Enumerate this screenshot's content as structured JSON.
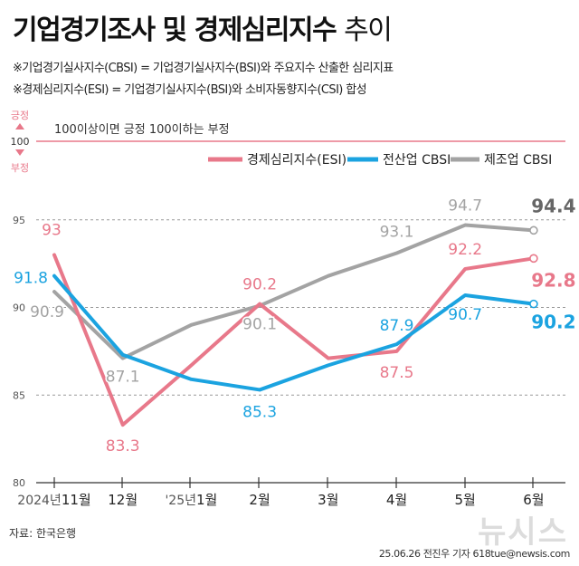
{
  "title": {
    "bold": "기업경기조사 및 경제심리지수",
    "light": "추이"
  },
  "notes": [
    "※기업경기실사지수(CBSI) = 기업경기실사지수(BSI)와 주요지수 산출한 심리지표",
    "※경제심리지수(ESI) = 기업경기실사지수(BSI)와 소비자동향지수(CSI) 합성"
  ],
  "reference": {
    "positive": "긍정",
    "negative": "부정",
    "level_label": "100",
    "description": "100이상이면 긍정 100이하는 부정"
  },
  "source": "자료: 한국은행",
  "credit": "25.06.26 전진우 기자 618tue@newsis.com",
  "watermark": "뉴시스",
  "colors": {
    "esi": "#e8788a",
    "cbsi_all": "#1ba3e0",
    "cbsi_mfg": "#a3a3a3",
    "reference": "#e8788a"
  },
  "chart_data": {
    "type": "line",
    "categories": [
      "2024년11월",
      "12월",
      "'25년1월",
      "2월",
      "3월",
      "4월",
      "5월",
      "6월"
    ],
    "category_display": [
      {
        "prefix": "2024년",
        "month": "11월"
      },
      {
        "prefix": "",
        "month": "12월"
      },
      {
        "prefix": "'25년",
        "month": "1월"
      },
      {
        "prefix": "",
        "month": "2월"
      },
      {
        "prefix": "",
        "month": "3월"
      },
      {
        "prefix": "",
        "month": "4월"
      },
      {
        "prefix": "",
        "month": "5월"
      },
      {
        "prefix": "",
        "month": "6월"
      }
    ],
    "ylim": [
      80,
      96
    ],
    "yticks": [
      80,
      85,
      90,
      95
    ],
    "series": [
      {
        "key": "mfg",
        "name": "제조업 CBSI",
        "color": "#a3a3a3",
        "values": [
          90.9,
          87.1,
          89.0,
          90.1,
          91.8,
          93.1,
          94.7,
          94.4
        ],
        "labels": [
          "90.9",
          "87.1",
          null,
          "90.1",
          null,
          "93.1",
          "94.7",
          "94.4"
        ]
      },
      {
        "key": "esi",
        "name": "경제심리지수(ESI)",
        "color": "#e8788a",
        "values": [
          93.0,
          83.3,
          86.7,
          90.2,
          87.1,
          87.5,
          92.2,
          92.8
        ],
        "labels": [
          "93",
          "83.3",
          null,
          "90.2",
          null,
          "87.5",
          "92.2",
          "92.8"
        ]
      },
      {
        "key": "all",
        "name": "전산업 CBSI",
        "color": "#1ba3e0",
        "values": [
          91.8,
          87.3,
          85.9,
          85.3,
          86.7,
          87.9,
          90.7,
          90.2
        ],
        "labels": [
          "91.8",
          null,
          null,
          "85.3",
          null,
          "87.9",
          "90.7",
          "90.2"
        ]
      }
    ]
  }
}
